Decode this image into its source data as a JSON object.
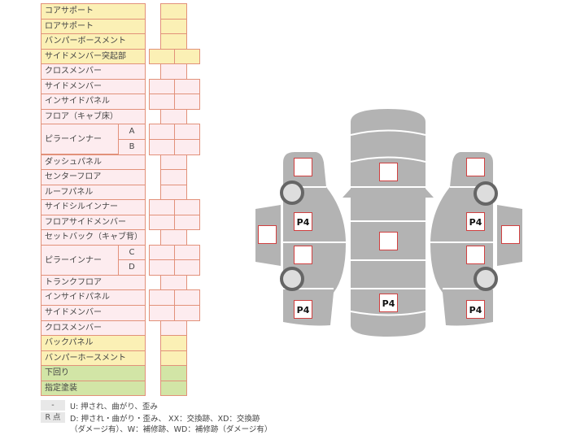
{
  "rows": [
    {
      "label": "コアサポート",
      "color": "y",
      "cells": 1
    },
    {
      "label": "ロアサポート",
      "color": "y",
      "cells": 1
    },
    {
      "label": "バンパーボースメント",
      "color": "y",
      "cells": 1
    },
    {
      "label": "サイドメンバー突起部",
      "color": "y",
      "cells": 2
    },
    {
      "label": "クロスメンバー",
      "color": "p",
      "cells": 1
    },
    {
      "label": "サイドメンバー",
      "color": "p",
      "cells": 2
    },
    {
      "label": "インサイドパネル",
      "color": "p",
      "cells": 2
    },
    {
      "label": "フロア（キャブ床）",
      "color": "p",
      "cells": 1
    },
    {
      "label": "ピラーインナー",
      "sub": "A",
      "color": "p",
      "cells": 2
    },
    {
      "label": "",
      "sub": "B",
      "color": "p",
      "cells": 2
    },
    {
      "label": "ダッシュパネル",
      "color": "p",
      "cells": 1
    },
    {
      "label": "センターフロア",
      "color": "p",
      "cells": 1
    },
    {
      "label": "ルーフパネル",
      "color": "p",
      "cells": 1
    },
    {
      "label": "サイドシルインナー",
      "color": "p",
      "cells": 2
    },
    {
      "label": "フロアサイドメンバー",
      "color": "p",
      "cells": 2
    },
    {
      "label": "セットバック（キャブ背）",
      "color": "p",
      "cells": 1
    },
    {
      "label": "ピラーインナー",
      "sub": "C",
      "color": "p",
      "cells": 2
    },
    {
      "label": "",
      "sub": "D",
      "color": "p",
      "cells": 2
    },
    {
      "label": "トランクフロア",
      "color": "p",
      "cells": 1
    },
    {
      "label": "インサイドパネル",
      "color": "p",
      "cells": 2
    },
    {
      "label": "サイドメンバー",
      "color": "p",
      "cells": 2
    },
    {
      "label": "クロスメンバー",
      "color": "p",
      "cells": 1
    },
    {
      "label": "バックパネル",
      "color": "y",
      "cells": 1
    },
    {
      "label": "バンパーホースメント",
      "color": "y",
      "cells": 1
    },
    {
      "label": "下回り",
      "color": "g",
      "cells": 1
    },
    {
      "label": "指定塗装",
      "color": "g",
      "cells": 1
    }
  ],
  "legend": {
    "key1": "-",
    "text1": "U: 押され、曲がり、歪み",
    "key2": "R 点",
    "text2": "D: 押され・曲がり・歪み、 XX：交換跡、XD：交換跡",
    "text3": "（ダメージ有）、W：補修跡、WD：補修跡（ダメージ有）"
  },
  "diagram": {
    "marker_label": "P4",
    "body_color": "#b3b3b3",
    "marker_border": "#d04040",
    "markers": [
      {
        "name": "left-front-fender",
        "text": ""
      },
      {
        "name": "left-front-door",
        "text": "P4"
      },
      {
        "name": "left-mirror-door",
        "text": ""
      },
      {
        "name": "left-rear-door",
        "text": ""
      },
      {
        "name": "left-rear-quarter",
        "text": "P4"
      },
      {
        "name": "hood",
        "text": ""
      },
      {
        "name": "roof",
        "text": ""
      },
      {
        "name": "trunk",
        "text": "P4"
      },
      {
        "name": "right-front-fender",
        "text": ""
      },
      {
        "name": "right-front-door",
        "text": "P4"
      },
      {
        "name": "right-mirror-door",
        "text": ""
      },
      {
        "name": "right-rear-door",
        "text": ""
      },
      {
        "name": "right-rear-quarter",
        "text": "P4"
      }
    ]
  }
}
